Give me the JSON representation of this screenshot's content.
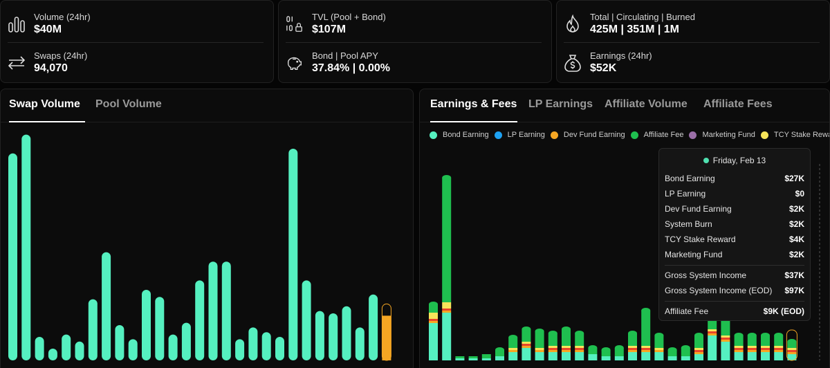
{
  "stats": {
    "volume": {
      "label": "Volume (24hr)",
      "value": "$40M"
    },
    "swaps": {
      "label": "Swaps (24hr)",
      "value": "94,070"
    },
    "tvl": {
      "label": "TVL (Pool + Bond)",
      "value": "$107M"
    },
    "apy": {
      "label": "Bond | Pool APY",
      "value": "37.84% | 0.00%"
    },
    "supply": {
      "label": "Total | Circulating | Burned",
      "value": "425M | 351M | 1M"
    },
    "earnings": {
      "label": "Earnings (24hr)",
      "value": "$52K"
    }
  },
  "left_panel": {
    "tabs": [
      "Swap Volume",
      "Pool Volume"
    ],
    "active_tab": 0
  },
  "right_panel": {
    "tabs": [
      "Earnings & Fees",
      "LP Earnings",
      "Affiliate Volume",
      "Affiliate Fees"
    ],
    "active_tab": 0
  },
  "colors": {
    "bond": "#55f0c0",
    "lp": "#1da1f2",
    "dev": "#f5a623",
    "affiliate": "#1fbf4f",
    "marketing": "#9b6fa8",
    "tcy": "#f7e55a",
    "burn": "#e8452a",
    "current": "#f5a623"
  },
  "tooltip": {
    "date": "Friday, Feb 13",
    "rows": [
      {
        "label": "Bond Earning",
        "value": "$27K"
      },
      {
        "label": "LP Earning",
        "value": "$0"
      },
      {
        "label": "Dev Fund Earning",
        "value": "$2K"
      },
      {
        "label": "System Burn",
        "value": "$2K"
      },
      {
        "label": "TCY Stake Reward",
        "value": "$4K"
      },
      {
        "label": "Marketing Fund",
        "value": "$2K"
      },
      {
        "label": "Gross System Income",
        "value": "$37K"
      },
      {
        "label": "Gross System Income (EOD)",
        "value": "$97K"
      },
      {
        "label": "Affiliate Fee",
        "value": "$9K (EOD)"
      }
    ]
  },
  "chart_data": [
    {
      "type": "bar",
      "title": "Swap Volume",
      "xlabel": "",
      "ylabel": "",
      "ylim": [
        0,
        100
      ],
      "series": [
        {
          "name": "Swap Volume",
          "values": [
            88,
            96,
            10,
            5,
            11,
            8,
            26,
            46,
            15,
            9,
            30,
            27,
            11,
            16,
            34,
            42,
            42,
            9,
            14,
            12,
            10,
            90,
            34,
            21,
            20,
            23,
            14,
            28,
            24
          ]
        }
      ],
      "current_index": 28,
      "current_fill": 19
    },
    {
      "type": "bar",
      "title": "Earnings & Fees",
      "legend": [
        "Bond Earning",
        "LP Earning",
        "Dev Fund Earning",
        "Affiliate Fee",
        "Marketing Fund",
        "TCY Stake Reward"
      ],
      "legend_position": "top",
      "ylim": [
        0,
        100
      ],
      "series": [
        {
          "name": "Bond Earning",
          "values": [
            18,
            23,
            1,
            1,
            1,
            2,
            4,
            6,
            4,
            4,
            4,
            4,
            3,
            2,
            2,
            4,
            4,
            4,
            2,
            2,
            3,
            12,
            9,
            4,
            4,
            4,
            4,
            3
          ]
        },
        {
          "name": "Dev Fund Earning",
          "values": [
            1,
            1,
            0,
            0,
            0,
            0,
            1,
            1,
            1,
            1,
            1,
            1,
            0,
            0,
            0,
            1,
            1,
            1,
            0,
            0,
            1,
            1,
            1,
            1,
            1,
            1,
            1,
            1
          ]
        },
        {
          "name": "System Burn",
          "values": [
            1,
            1,
            0,
            0,
            0,
            0,
            0,
            1,
            0,
            1,
            1,
            1,
            0,
            0,
            0,
            1,
            1,
            0,
            0,
            0,
            1,
            1,
            1,
            1,
            1,
            1,
            1,
            1
          ]
        },
        {
          "name": "TCY Stake Reward",
          "values": [
            3,
            3,
            0,
            0,
            0,
            0,
            1,
            1,
            1,
            1,
            1,
            1,
            0,
            0,
            0,
            1,
            1,
            1,
            0,
            0,
            1,
            1,
            1,
            1,
            1,
            1,
            1,
            1
          ]
        },
        {
          "name": "Affiliate Fee",
          "values": [
            4,
            60,
            1,
            1,
            2,
            3,
            5,
            6,
            8,
            6,
            8,
            6,
            3,
            3,
            4,
            6,
            17,
            6,
            3,
            4,
            6,
            27,
            31,
            5,
            5,
            5,
            5,
            3
          ]
        }
      ]
    }
  ]
}
